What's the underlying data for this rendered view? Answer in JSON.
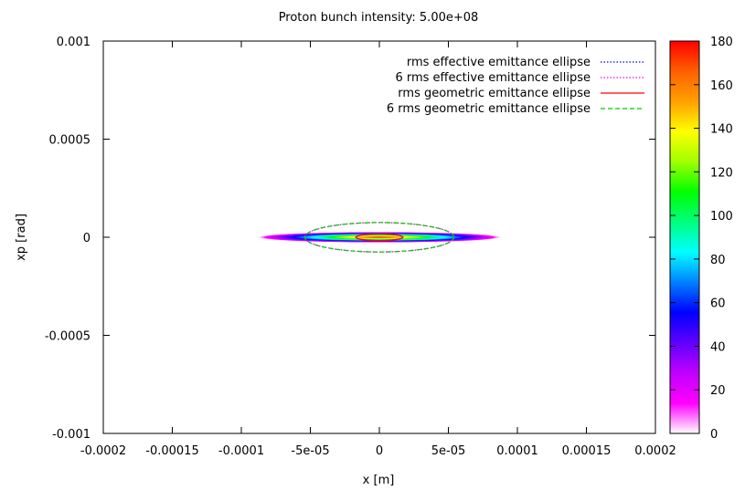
{
  "chart_data": {
    "type": "heatmap",
    "title": "Proton bunch intensity: 5.00e+08",
    "xlabel": "x [m]",
    "ylabel": "xp [rad]",
    "xlim": [
      -0.0002,
      0.0002
    ],
    "ylim": [
      -0.001,
      0.001
    ],
    "xticks": [
      "-0.0002",
      "-0.00015",
      "-0.0001",
      "-5e-05",
      "0",
      "5e-05",
      "0.0001",
      "0.00015",
      "0.0002"
    ],
    "xtick_values": [
      -0.0002,
      -0.00015,
      -0.0001,
      -5e-05,
      0,
      5e-05,
      0.0001,
      0.00015,
      0.0002
    ],
    "yticks": [
      "0.001",
      "0.0005",
      "0",
      "-0.0005",
      "-0.001"
    ],
    "ytick_values": [
      0.001,
      0.0005,
      0,
      -0.0005,
      -0.001
    ],
    "colorbar": {
      "range": [
        0,
        180
      ],
      "ticks": [
        "180",
        "160",
        "140",
        "120",
        "100",
        "80",
        "60",
        "40",
        "20",
        "0"
      ],
      "tick_values": [
        180,
        160,
        140,
        120,
        100,
        80,
        60,
        40,
        20,
        0
      ],
      "palette": [
        "#ffffff",
        "#ff00ff",
        "#c000ff",
        "#6000ff",
        "#0000ff",
        "#0080ff",
        "#00ffff",
        "#00ff80",
        "#00ff00",
        "#a0ff00",
        "#ffff00",
        "#ffa000",
        "#ff6000",
        "#ff0000"
      ]
    },
    "distribution": {
      "center_x": 0,
      "center_xp": 0,
      "peak_density": 180,
      "sigma_x": 1.6e-05,
      "sigma_xp": 2.6e-05
    },
    "grid": false,
    "legend_position": "top-right",
    "series": [
      {
        "name": "rms effective emittance ellipse",
        "style": "dotted",
        "color": "#0000ff",
        "semi_axis_x": 1.7e-05,
        "semi_axis_xp": 1.7e-05
      },
      {
        "name": "6 rms effective emittance ellipse",
        "style": "dotted",
        "color": "#ff00ff",
        "semi_axis_x": 5.4e-05,
        "semi_axis_xp": 7.5e-05
      },
      {
        "name": "rms geometric emittance ellipse",
        "style": "solid",
        "color": "#ff0000",
        "semi_axis_x": 1.7e-05,
        "semi_axis_xp": 1.7e-05
      },
      {
        "name": "6 rms geometric emittance ellipse",
        "style": "dashed",
        "color": "#00cc00",
        "semi_axis_x": 5.4e-05,
        "semi_axis_xp": 7.5e-05
      }
    ]
  }
}
